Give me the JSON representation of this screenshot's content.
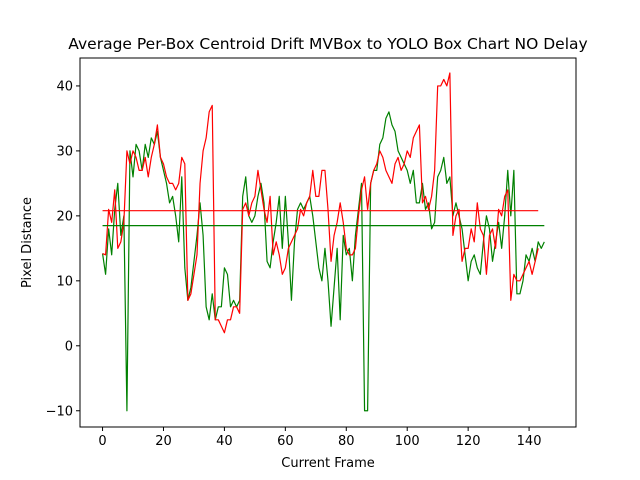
{
  "chart_data": {
    "type": "line",
    "title": "Average Per-Box Centroid Drift MVBox to YOLO Box Chart NO Delay",
    "xlabel": "Current Frame",
    "ylabel": "Pixel Distance",
    "xlim": [
      -7.4,
      155.4
    ],
    "ylim": [
      -12.5,
      44.3
    ],
    "xticks": [
      0,
      20,
      40,
      60,
      80,
      100,
      120,
      140
    ],
    "yticks": [
      -10,
      0,
      10,
      20,
      30,
      40
    ],
    "grid": false,
    "legend": "none",
    "series": [
      {
        "color": "#008000",
        "x_start": 0,
        "values": [
          14.2,
          11,
          18,
          14,
          21,
          25,
          17,
          20,
          -10,
          30,
          26,
          31,
          30,
          27,
          31,
          29,
          32,
          31,
          33,
          29,
          27,
          25,
          22,
          23,
          20,
          16,
          26,
          12,
          7,
          9,
          13,
          17,
          22,
          17,
          6,
          4,
          8,
          4,
          6,
          6,
          12,
          11,
          6,
          7,
          6,
          7,
          23,
          26,
          20,
          19,
          20,
          23,
          25,
          22,
          13,
          12,
          16,
          19,
          23,
          15,
          23,
          16,
          7,
          16,
          21,
          22,
          21,
          22,
          23,
          20,
          16,
          12,
          10,
          15,
          10,
          3,
          9,
          15,
          4,
          17,
          14,
          15,
          10,
          17,
          21,
          25,
          -10,
          -10,
          25,
          27,
          27,
          31,
          32,
          35,
          36,
          34,
          33,
          30,
          29,
          28,
          27,
          25,
          27,
          22,
          22,
          25,
          21,
          22,
          18,
          19,
          26,
          27,
          29,
          25,
          26,
          20,
          22,
          20,
          18,
          14,
          10,
          13,
          14,
          12,
          11,
          16,
          20,
          18,
          13,
          16,
          19,
          15,
          20,
          27,
          20,
          27,
          8,
          8,
          10,
          14,
          13,
          15,
          13,
          16,
          15,
          16
        ],
        "mean": 18.5
      },
      {
        "color": "#ff0000",
        "x_start": 0,
        "values": [
          14.2,
          14,
          21,
          19,
          24,
          15,
          16,
          19,
          30,
          28,
          30,
          29,
          27,
          27,
          29,
          26,
          29,
          31,
          34,
          29,
          28,
          26,
          25,
          25,
          24,
          25,
          29,
          28,
          7,
          8,
          11,
          14,
          25,
          30,
          32,
          36,
          37,
          4,
          4,
          3,
          2,
          4,
          4,
          6,
          6,
          5,
          21,
          22,
          20,
          22,
          23,
          27,
          24,
          21,
          19,
          23,
          14,
          16,
          14,
          11,
          12,
          15,
          16,
          17,
          18,
          21,
          20,
          22,
          23,
          27,
          23,
          23,
          27,
          27,
          21,
          13,
          17,
          19,
          22,
          19,
          15,
          14,
          14,
          15,
          20,
          24,
          26,
          21,
          25,
          27,
          28,
          30,
          29,
          27,
          26,
          25,
          28,
          29,
          27,
          28,
          30,
          29,
          32,
          33,
          34,
          22,
          23,
          21,
          23,
          27,
          40,
          40,
          41,
          40,
          42,
          17,
          20,
          21,
          13,
          15,
          15,
          18,
          16,
          22,
          18,
          17,
          11,
          17,
          18,
          15,
          21,
          20,
          23,
          24,
          7,
          11,
          10,
          10,
          11,
          12,
          13,
          11,
          13,
          15
        ],
        "mean": 20.8
      }
    ]
  }
}
